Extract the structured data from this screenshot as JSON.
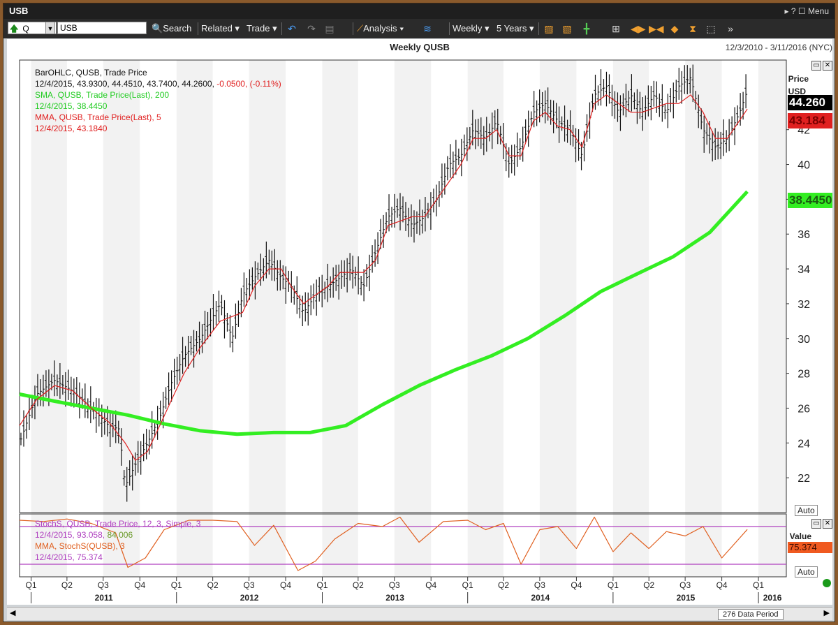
{
  "window": {
    "title": "USB",
    "menu_label": "Menu",
    "controls": "▸ ? ☐"
  },
  "toolbar": {
    "symbol_prefix": "Q",
    "ticker": "USB",
    "search": "Search",
    "related": "Related",
    "trade": "Trade",
    "analysis": "Analysis",
    "interval": "Weekly",
    "range": "5 Years"
  },
  "chart": {
    "title": "Weekly QUSB",
    "date_range": "12/3/2010 - 3/11/2016 (NYC)",
    "price_axis_label": "Price",
    "price_axis_unit": "USD",
    "auto_label": "Auto",
    "value_axis_label": "Value",
    "data_period": "276 Data Period",
    "legend": {
      "bar_title": "BarOHLC, QUSB, Trade Price",
      "bar_values_prefix": "12/4/2015, 43.9300, 44.4510, 43.7400, 44.2600,",
      "bar_change": "-0.0500, (-0.11%)",
      "sma_title": "SMA, QUSB, Trade Price(Last), 200",
      "sma_values": "12/4/2015, 38.4450",
      "mma_title": "MMA, QUSB, Trade Price(Last), 5",
      "mma_values": "12/4/2015, 43.1840",
      "stoch_title": "StochS, QUSB, Trade Price, 12, 3, Simple, 3",
      "stoch_values_a": "12/4/2015, 93.058,",
      "stoch_values_b": "84.006",
      "stoch_mma_title": "MMA, StochS(QUSB), 3",
      "stoch_mma_values": "12/4/2015, 75.374"
    },
    "tags": {
      "last_price": "44.260",
      "mma_value": "43.184",
      "sma_value": "38.4450",
      "stoch_value": "75.374"
    },
    "colors": {
      "sma": "#33ee22",
      "mma": "#e02020",
      "stoch": "#b040c0",
      "stoch_mma": "#e06020",
      "bars": "#111111",
      "band_shade": "#f2f2f2"
    }
  },
  "chart_data": [
    {
      "type": "line",
      "title": "Weekly QUSB",
      "ylabel": "Price USD",
      "ylim": [
        20,
        46
      ],
      "yticks": [
        22,
        24,
        26,
        28,
        30,
        32,
        34,
        36,
        38,
        40,
        42
      ],
      "x_quarters": [
        "Q1",
        "Q2",
        "Q3",
        "Q4",
        "Q1",
        "Q2",
        "Q3",
        "Q4",
        "Q1",
        "Q2",
        "Q3",
        "Q4",
        "Q1",
        "Q2",
        "Q3",
        "Q4",
        "Q1",
        "Q2",
        "Q3",
        "Q4",
        "Q1"
      ],
      "x_years": [
        "2011",
        "2012",
        "2013",
        "2014",
        "2015",
        "2016"
      ],
      "series": [
        {
          "name": "BarOHLC, QUSB, Trade Price",
          "style": "ohlc-bars",
          "x": [
            "2010-12-03",
            "2011-01-15",
            "2011-03-01",
            "2011-04-15",
            "2011-06-01",
            "2011-07-15",
            "2011-08-10",
            "2011-08-25",
            "2011-09-20",
            "2011-10-20",
            "2011-11-20",
            "2011-12-20",
            "2012-01-20",
            "2012-03-01",
            "2012-03-25",
            "2012-04-20",
            "2012-05-20",
            "2012-06-15",
            "2012-07-15",
            "2012-08-20",
            "2012-09-20",
            "2012-10-15",
            "2012-11-15",
            "2012-12-15",
            "2013-01-15",
            "2013-02-15",
            "2013-03-15",
            "2013-04-15",
            "2013-05-15",
            "2013-06-15",
            "2013-07-15",
            "2013-08-15",
            "2013-09-15",
            "2013-10-15",
            "2013-11-15",
            "2013-12-15",
            "2014-01-15",
            "2014-02-15",
            "2014-03-15",
            "2014-04-15",
            "2014-05-15",
            "2014-06-15",
            "2014-07-15",
            "2014-08-15",
            "2014-09-15",
            "2014-10-15",
            "2014-11-15",
            "2014-12-15",
            "2015-01-15",
            "2015-02-15",
            "2015-03-15",
            "2015-04-15",
            "2015-05-15",
            "2015-06-15",
            "2015-07-15",
            "2015-08-15",
            "2015-09-15",
            "2015-10-15",
            "2015-11-15",
            "2015-12-04"
          ],
          "values": [
            24.0,
            26.8,
            27.6,
            27.0,
            26.0,
            25.0,
            24.8,
            21.5,
            22.8,
            24.0,
            25.5,
            27.5,
            29.0,
            30.0,
            31.0,
            32.0,
            30.0,
            32.5,
            33.5,
            34.5,
            33.5,
            33.0,
            31.5,
            32.5,
            33.0,
            33.5,
            34.0,
            33.0,
            35.0,
            37.0,
            37.5,
            36.5,
            37.0,
            38.0,
            40.0,
            40.5,
            42.0,
            41.5,
            42.5,
            40.0,
            41.0,
            43.0,
            43.5,
            42.5,
            42.0,
            40.5,
            44.0,
            44.5,
            43.0,
            44.0,
            43.0,
            44.0,
            43.0,
            44.5,
            45.0,
            42.0,
            41.0,
            41.5,
            43.0,
            44.26
          ]
        },
        {
          "name": "SMA, QUSB, Trade Price(Last), 200",
          "x": [
            "2010-12-03",
            "2011-03-01",
            "2011-06-01",
            "2011-09-01",
            "2011-12-01",
            "2012-03-01",
            "2012-06-01",
            "2012-09-01",
            "2012-12-01",
            "2013-03-01",
            "2013-06-01",
            "2013-09-01",
            "2013-12-01",
            "2014-03-01",
            "2014-06-01",
            "2014-09-01",
            "2014-12-01",
            "2015-03-01",
            "2015-06-01",
            "2015-09-01",
            "2015-12-04"
          ],
          "values": [
            26.8,
            26.4,
            26.0,
            25.6,
            25.1,
            24.7,
            24.5,
            24.6,
            24.6,
            25.0,
            26.2,
            27.3,
            28.2,
            29.0,
            30.0,
            31.3,
            32.7,
            33.7,
            34.7,
            36.1,
            38.445
          ]
        },
        {
          "name": "MMA, QUSB, Trade Price(Last), 5",
          "x": [
            "2010-12-03",
            "2011-01-15",
            "2011-03-01",
            "2011-04-15",
            "2011-06-01",
            "2011-07-15",
            "2011-08-25",
            "2011-09-20",
            "2011-10-20",
            "2011-11-20",
            "2011-12-20",
            "2012-01-20",
            "2012-03-01",
            "2012-04-20",
            "2012-06-15",
            "2012-07-15",
            "2012-08-20",
            "2012-09-20",
            "2012-10-15",
            "2012-11-15",
            "2012-12-15",
            "2013-01-15",
            "2013-02-15",
            "2013-04-15",
            "2013-05-15",
            "2013-06-15",
            "2013-08-15",
            "2013-09-15",
            "2013-11-15",
            "2013-12-15",
            "2014-01-15",
            "2014-02-15",
            "2014-03-15",
            "2014-04-15",
            "2014-05-15",
            "2014-06-15",
            "2014-07-15",
            "2014-08-15",
            "2014-09-15",
            "2014-10-15",
            "2014-11-15",
            "2014-12-15",
            "2015-01-15",
            "2015-02-15",
            "2015-03-15",
            "2015-05-15",
            "2015-06-15",
            "2015-07-15",
            "2015-08-15",
            "2015-09-15",
            "2015-10-15",
            "2015-12-04"
          ],
          "values": [
            25.0,
            26.5,
            27.3,
            27.0,
            26.0,
            25.2,
            24.0,
            23.0,
            23.5,
            25.0,
            26.5,
            28.0,
            29.5,
            31.0,
            31.5,
            33.0,
            34.0,
            34.0,
            33.0,
            32.0,
            32.5,
            33.0,
            33.8,
            33.8,
            34.5,
            36.5,
            37.0,
            37.0,
            39.0,
            40.0,
            41.5,
            41.5,
            42.0,
            40.5,
            40.5,
            42.5,
            43.0,
            42.2,
            42.0,
            41.0,
            43.5,
            44.0,
            43.5,
            43.0,
            43.0,
            43.5,
            43.5,
            44.0,
            43.0,
            41.5,
            41.5,
            43.184
          ]
        }
      ]
    },
    {
      "type": "line",
      "ylabel": "Value",
      "ylim": [
        0,
        100
      ],
      "series": [
        {
          "name": "MMA, StochS(QUSB), 3",
          "x": [
            "2010-12-03",
            "2011-02-01",
            "2011-04-01",
            "2011-06-01",
            "2011-08-01",
            "2011-09-01",
            "2011-10-15",
            "2011-12-01",
            "2012-02-01",
            "2012-04-01",
            "2012-06-01",
            "2012-07-15",
            "2012-09-01",
            "2012-11-01",
            "2012-12-15",
            "2013-02-01",
            "2013-04-01",
            "2013-06-01",
            "2013-07-15",
            "2013-09-01",
            "2013-11-01",
            "2014-01-01",
            "2014-02-15",
            "2014-04-01",
            "2014-05-15",
            "2014-07-01",
            "2014-08-15",
            "2014-10-01",
            "2014-11-15",
            "2015-01-01",
            "2015-02-15",
            "2015-04-01",
            "2015-05-15",
            "2015-07-01",
            "2015-08-15",
            "2015-10-01",
            "2015-12-04"
          ],
          "values": [
            90,
            88,
            92,
            85,
            70,
            15,
            30,
            75,
            90,
            90,
            88,
            50,
            82,
            10,
            25,
            60,
            85,
            80,
            95,
            55,
            88,
            90,
            75,
            85,
            20,
            75,
            80,
            45,
            95,
            40,
            70,
            45,
            72,
            65,
            80,
            30,
            75.374
          ]
        }
      ]
    }
  ]
}
